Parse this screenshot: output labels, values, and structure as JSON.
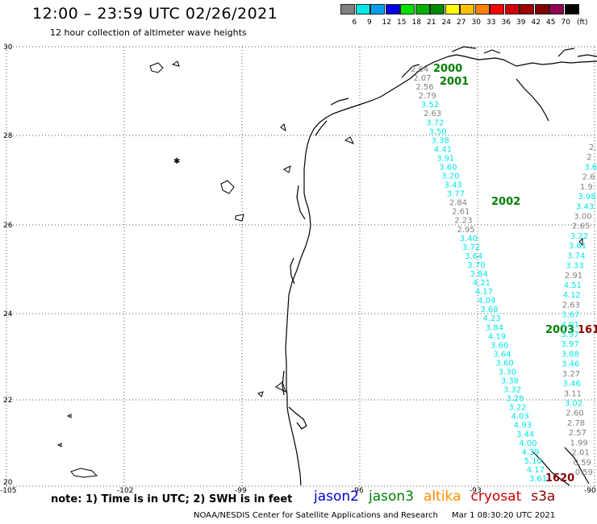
{
  "header": {
    "title": "12:00 – 23:59 UTC 02/26/2021",
    "subtitle": "12 hour collection of altimeter wave heights"
  },
  "color_scale": {
    "labels": [
      "3",
      "6",
      "9",
      "12",
      "15",
      "18",
      "21",
      "24",
      "27",
      "30",
      "33",
      "36",
      "39",
      "42",
      "45",
      "70"
    ],
    "colors": [
      "#808080",
      "#00e8e8",
      "#00a0f0",
      "#0000e0",
      "#00e000",
      "#00b000",
      "#008800",
      "#ffff00",
      "#ffc000",
      "#ff8000",
      "#ff0000",
      "#d00000",
      "#a00000",
      "#800000",
      "#900050",
      "#000000"
    ],
    "unit_label": "(ft)"
  },
  "axes": {
    "lat_labels": [
      "30",
      "28",
      "26",
      "24",
      "22",
      "20"
    ],
    "lon_labels": [
      "-105",
      "-102",
      "-99",
      "-96",
      "-93",
      "-90"
    ]
  },
  "passes": [
    {
      "satellite": "jason3",
      "label": "2000",
      "color": "#008000"
    },
    {
      "satellite": "jason3",
      "label": "2001",
      "color": "#008000"
    },
    {
      "satellite": "jason3",
      "label": "2002",
      "color": "#008000"
    },
    {
      "satellite": "jason3",
      "label": "2003",
      "color": "#008000"
    },
    {
      "satellite": "cryosat",
      "label": "1620",
      "color": "#8b0000"
    },
    {
      "satellite": "cryosat",
      "label": "161",
      "color": "#8b0000"
    }
  ],
  "tracks": [
    {
      "name": "jason3-descending-west",
      "values": [
        "2.64",
        "2.07",
        "2.56",
        "2.79",
        "3.52",
        "2.63",
        "3.72",
        "3.50",
        "3.38",
        "4.41",
        "3.91",
        "3.60",
        "3.20",
        "3.43",
        "3.77",
        "2.84",
        "2.61",
        "2.23",
        "2.95",
        "3.40",
        "3.72",
        "3.64",
        "3.70",
        "3.84",
        "4.21",
        "4.17",
        "4.04",
        "3.68",
        "4.23",
        "3.84",
        "4.19",
        "3.60",
        "3.64",
        "3.60",
        "3.30",
        "3.38",
        "3.32",
        "3.28",
        "3.22",
        "4.03",
        "4.93",
        "3.44",
        "4.00",
        "4.39",
        "5.10",
        "4.17",
        "3.61"
      ],
      "colors": [
        "#808080",
        "#808080",
        "#808080",
        "#808080",
        "#00e8e8",
        "#808080",
        "#00e8e8",
        "#00e8e8",
        "#00e8e8",
        "#00e8e8",
        "#00e8e8",
        "#00e8e8",
        "#00e8e8",
        "#00e8e8",
        "#00e8e8",
        "#808080",
        "#808080",
        "#808080",
        "#808080",
        "#00e8e8",
        "#00e8e8",
        "#00e8e8",
        "#00e8e8",
        "#00e8e8",
        "#00e8e8",
        "#00e8e8",
        "#00e8e8",
        "#00e8e8",
        "#00e8e8",
        "#00e8e8",
        "#00e8e8",
        "#00e8e8",
        "#00e8e8",
        "#00e8e8",
        "#00e8e8",
        "#00e8e8",
        "#00e8e8",
        "#00e8e8",
        "#00e8e8",
        "#00e8e8",
        "#00e8e8",
        "#00e8e8",
        "#00e8e8",
        "#00e8e8",
        "#00e8e8",
        "#00e8e8",
        "#00e8e8"
      ]
    },
    {
      "name": "jason3-ascending-east",
      "values": [
        "2.",
        "2",
        "3.6",
        "2.6",
        "1.9",
        "3.98",
        "3.43",
        "3.00",
        "2.65",
        "3.22",
        "3.61",
        "3.74",
        "3.33",
        "2.91",
        "4.51",
        "4.12",
        "2.63",
        "3.67",
        "4.01",
        "3.97",
        "3.97",
        "3.88",
        "3.46",
        "3.27",
        "3.46",
        "3.11",
        "3.02",
        "2.60",
        "2.78",
        "2.57",
        "1.99",
        "2.01",
        "0.59",
        "0.59"
      ],
      "colors": [
        "#808080",
        "#808080",
        "#00e8e8",
        "#808080",
        "#808080",
        "#00e8e8",
        "#00e8e8",
        "#808080",
        "#808080",
        "#00e8e8",
        "#00e8e8",
        "#00e8e8",
        "#00e8e8",
        "#808080",
        "#00e8e8",
        "#00e8e8",
        "#808080",
        "#00e8e8",
        "#00e8e8",
        "#00e8e8",
        "#00e8e8",
        "#00e8e8",
        "#00e8e8",
        "#808080",
        "#00e8e8",
        "#808080",
        "#00e8e8",
        "#808080",
        "#808080",
        "#808080",
        "#808080",
        "#808080",
        "#808080",
        "#808080"
      ]
    }
  ],
  "footer": {
    "note": "note:  1) Time is in UTC;  2) SWH is in feet",
    "satellites": [
      {
        "name": "jason2",
        "color": "#0000cc"
      },
      {
        "name": "jason3",
        "color": "#008000"
      },
      {
        "name": "altika",
        "color": "#ff8c00"
      },
      {
        "name": "cryosat",
        "color": "#cc0000"
      },
      {
        "name": "s3a",
        "color": "#8b0000"
      }
    ],
    "credit_org": "NOAA/NESDIS Center for Satellite Applications and Research",
    "credit_time": "Mar  1 08:30:20 UTC 2021"
  }
}
